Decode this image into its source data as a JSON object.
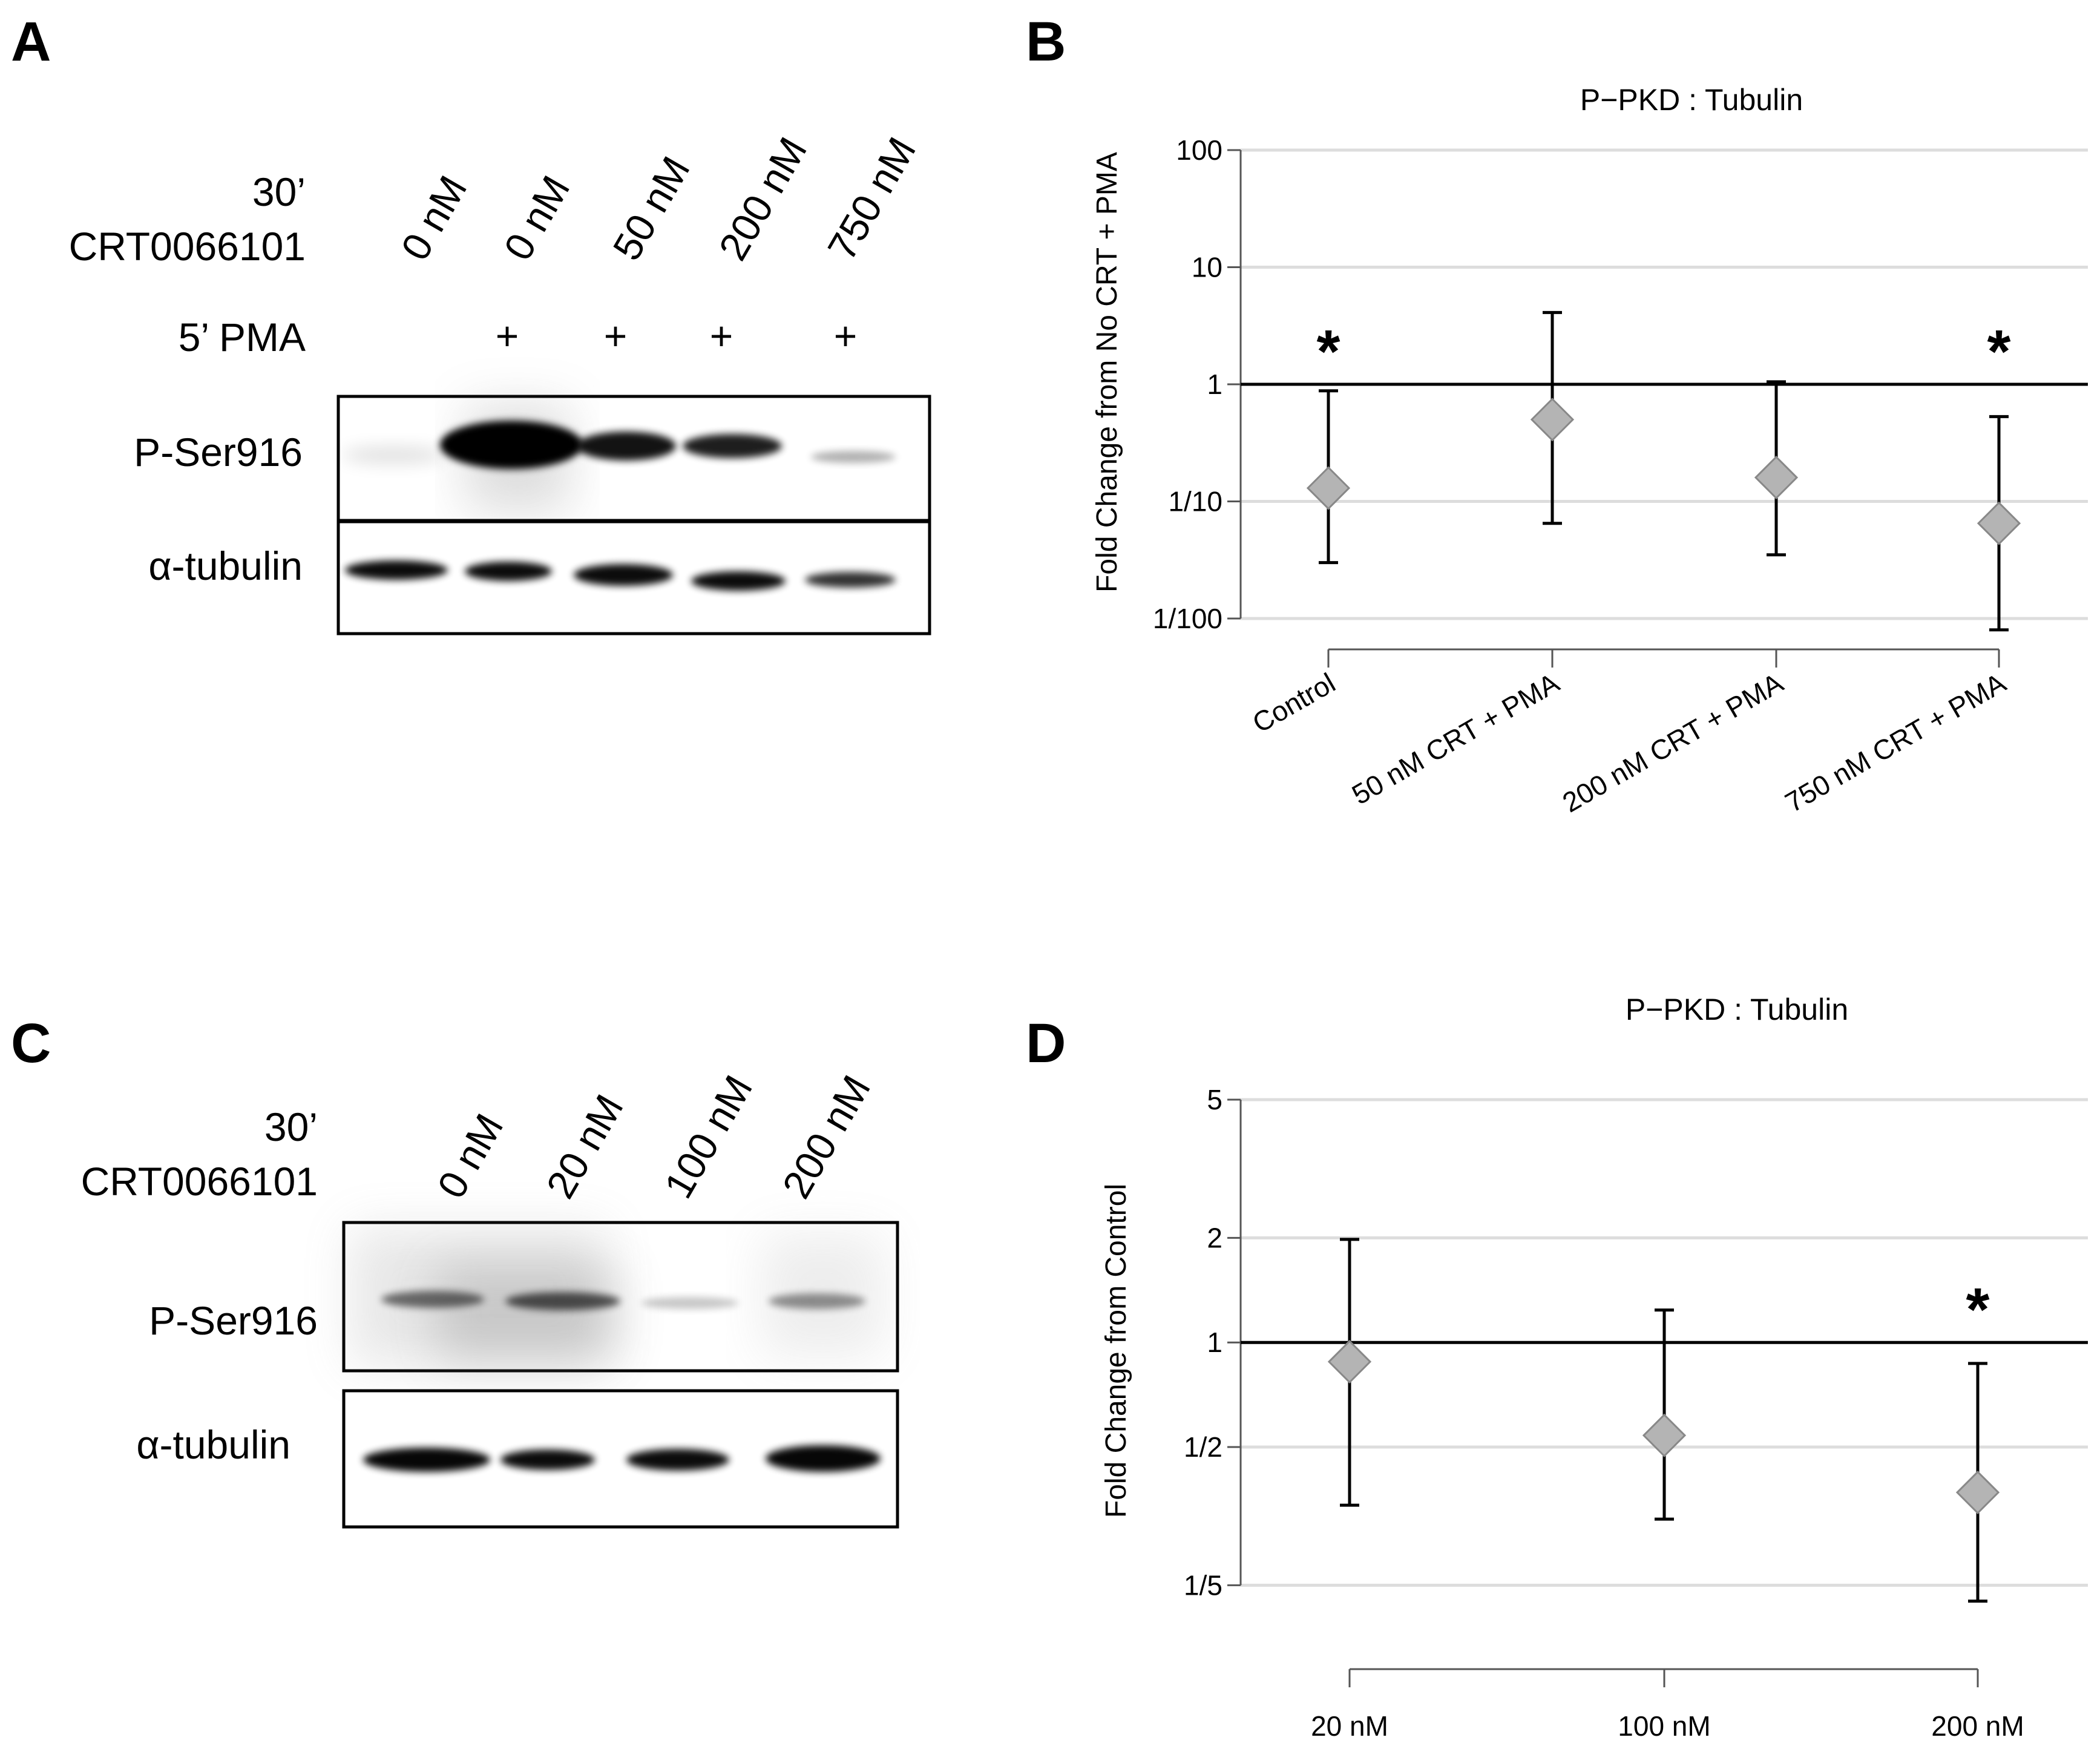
{
  "panels": {
    "A": {
      "letter": "A",
      "time_label": "30’",
      "drug_label": "CRT0066101",
      "pma_label": "5’ PMA",
      "lanes": [
        "0 nM",
        "0 nM",
        "50 nM",
        "200 nM",
        "750 nM"
      ],
      "pma": [
        "",
        "+",
        "+",
        "+",
        "+"
      ],
      "rows": [
        "P-Ser916",
        "α-tubulin"
      ]
    },
    "C": {
      "letter": "C",
      "time_label": "30’",
      "drug_label": "CRT0066101",
      "lanes": [
        "0 nM",
        "20 nM",
        "100 nM",
        "200 nM"
      ],
      "rows": [
        "P-Ser916",
        "α-tubulin"
      ]
    },
    "B": {
      "letter": "B"
    },
    "D": {
      "letter": "D"
    }
  },
  "chart_data": [
    {
      "panel": "B",
      "type": "scatter",
      "title": "P−PKD : Tubulin",
      "ylabel": "Fold Change from No CRT + PMA",
      "xlabel": "",
      "yscale": "log",
      "ylim": [
        0.01,
        100
      ],
      "yticks": [
        0.01,
        0.1,
        1,
        10,
        100
      ],
      "ytick_labels": [
        "1/100",
        "1/10",
        "1",
        "10",
        "100"
      ],
      "reference_line": 1,
      "grid": true,
      "categories": [
        "Control",
        "50 nM CRT + PMA",
        "200 nM CRT + PMA",
        "750 nM CRT + PMA"
      ],
      "values": [
        0.13,
        0.5,
        0.16,
        0.065
      ],
      "error_low": [
        0.03,
        0.065,
        0.035,
        0.008
      ],
      "error_high": [
        0.88,
        4.1,
        1.05,
        0.53
      ],
      "significance": [
        "*",
        "",
        "",
        "*"
      ],
      "marker_color": "#b4b4b4"
    },
    {
      "panel": "D",
      "type": "scatter",
      "title": "P−PKD : Tubulin",
      "ylabel": "Fold Change from Control",
      "xlabel": "",
      "yscale": "log",
      "ylim": [
        0.16,
        5
      ],
      "yticks": [
        0.2,
        0.5,
        1,
        2,
        5
      ],
      "ytick_labels": [
        "1/5",
        "1/2",
        "1",
        "2",
        "5"
      ],
      "reference_line": 1,
      "grid": true,
      "categories": [
        "20 nM",
        "100 nM",
        "200 nM"
      ],
      "values": [
        0.88,
        0.54,
        0.37
      ],
      "error_low": [
        0.34,
        0.31,
        0.18
      ],
      "error_high": [
        1.98,
        1.24,
        0.87
      ],
      "significance": [
        "",
        "",
        "*"
      ],
      "marker_color": "#b4b4b4"
    }
  ]
}
